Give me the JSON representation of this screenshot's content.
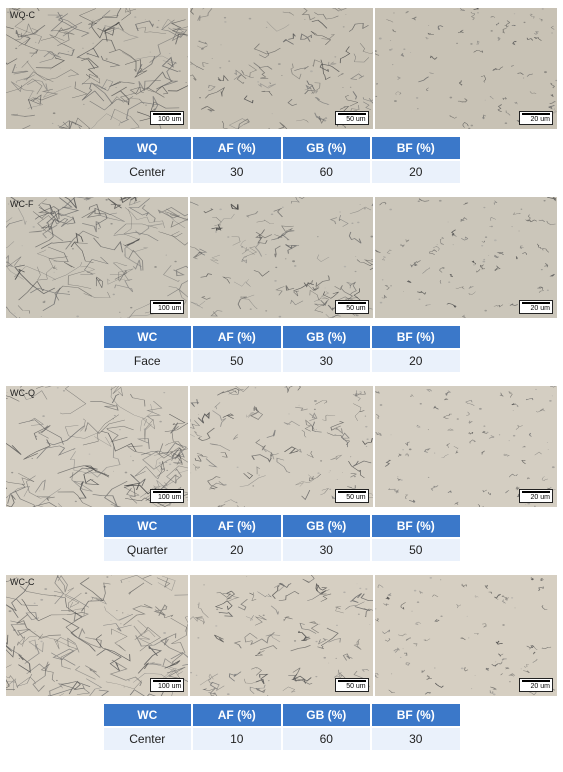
{
  "sections": [
    {
      "label": "WQ-C",
      "table": {
        "headers": [
          "WQ",
          "AF (%)",
          "GB (%)",
          "BF (%)"
        ],
        "row": [
          "Center",
          "30",
          "60",
          "20"
        ]
      },
      "scales": [
        "100 um",
        "50 um",
        "20 um"
      ],
      "texture_seed": 101,
      "tint": "#c8c2b5"
    },
    {
      "label": "WC-F",
      "table": {
        "headers": [
          "WC",
          "AF (%)",
          "GB (%)",
          "BF (%)"
        ],
        "row": [
          "Face",
          "50",
          "30",
          "20"
        ]
      },
      "scales": [
        "100 um",
        "50 um",
        "20 um"
      ],
      "texture_seed": 202,
      "tint": "#cbc6ba"
    },
    {
      "label": "WC-Q",
      "table": {
        "headers": [
          "WC",
          "AF (%)",
          "GB (%)",
          "BF (%)"
        ],
        "row": [
          "Quarter",
          "20",
          "30",
          "50"
        ]
      },
      "scales": [
        "100 um",
        "50 um",
        "20 um"
      ],
      "texture_seed": 303,
      "tint": "#d4cec2"
    },
    {
      "label": "WC-C",
      "table": {
        "headers": [
          "WC",
          "AF (%)",
          "GB (%)",
          "BF (%)"
        ],
        "row": [
          "Center",
          "10",
          "60",
          "30"
        ]
      },
      "scales": [
        "100 um",
        "50 um",
        "20 um"
      ],
      "texture_seed": 404,
      "tint": "#d6cfc2"
    }
  ],
  "colors": {
    "header_bg": "#3b78c9",
    "header_fg": "#ffffff",
    "cell_bg": "#eaf1fb",
    "cell_fg": "#222222",
    "page_bg": "#ffffff",
    "grain_line": "#6b6b6b",
    "grain_dark": "#4a4a4a"
  }
}
